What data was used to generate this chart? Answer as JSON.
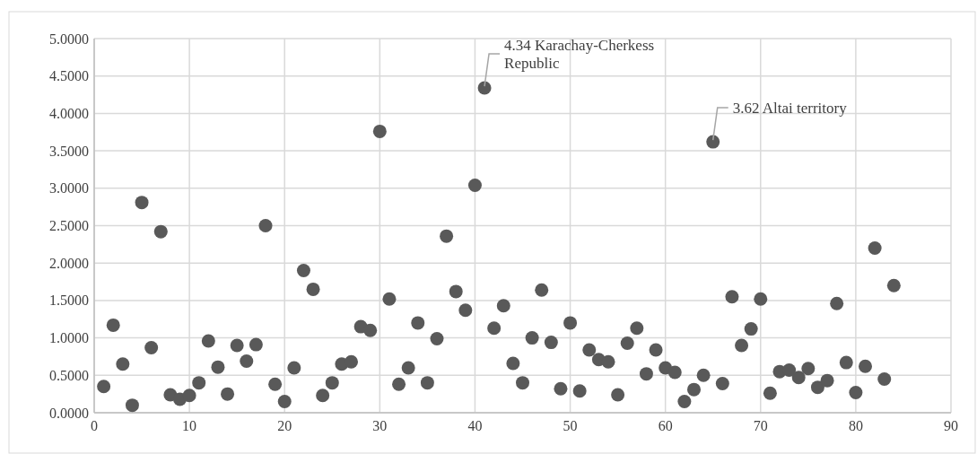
{
  "chart_data": {
    "type": "scatter",
    "x": [
      1,
      2,
      3,
      4,
      5,
      6,
      7,
      8,
      9,
      10,
      11,
      12,
      13,
      14,
      15,
      16,
      17,
      18,
      19,
      20,
      21,
      22,
      23,
      24,
      25,
      26,
      27,
      28,
      29,
      30,
      31,
      32,
      33,
      34,
      35,
      36,
      37,
      38,
      39,
      40,
      41,
      42,
      43,
      44,
      45,
      46,
      47,
      48,
      49,
      50,
      51,
      52,
      53,
      54,
      55,
      56,
      57,
      58,
      59,
      60,
      61,
      62,
      63,
      64,
      65,
      66,
      67,
      68,
      69,
      70,
      71,
      72,
      73,
      74,
      75,
      76,
      77,
      78,
      79,
      80,
      81,
      82,
      83,
      84
    ],
    "values": [
      0.35,
      1.17,
      0.65,
      0.1,
      2.81,
      0.87,
      2.42,
      0.24,
      0.18,
      0.23,
      0.4,
      0.96,
      0.61,
      0.25,
      0.9,
      0.69,
      0.91,
      2.5,
      0.38,
      0.15,
      0.6,
      1.9,
      1.65,
      0.23,
      0.4,
      0.65,
      0.68,
      1.15,
      1.1,
      3.76,
      1.52,
      0.38,
      0.6,
      1.2,
      0.4,
      0.99,
      2.36,
      1.62,
      1.37,
      3.04,
      4.34,
      1.13,
      1.43,
      0.66,
      0.4,
      1.0,
      1.64,
      0.94,
      0.32,
      1.2,
      0.29,
      0.84,
      0.71,
      0.68,
      0.24,
      0.93,
      1.13,
      0.52,
      0.84,
      0.6,
      0.54,
      0.15,
      0.31,
      0.5,
      3.62,
      0.39,
      1.55,
      0.9,
      1.12,
      1.52,
      0.26,
      0.55,
      0.57,
      0.47,
      0.59,
      0.34,
      0.43,
      1.46,
      0.67,
      0.27,
      0.62,
      2.2,
      0.45,
      1.7
    ],
    "color": "#595959",
    "marker": "circle",
    "grid": true,
    "xlim": [
      0,
      90
    ],
    "xticks": [
      0,
      10,
      20,
      30,
      40,
      50,
      60,
      70,
      80,
      90
    ],
    "ylim": [
      0,
      5
    ],
    "yticks": [
      {
        "value": 0,
        "label": "0.0000"
      },
      {
        "value": 0.5,
        "label": "0.5000"
      },
      {
        "value": 1,
        "label": "1.0000"
      },
      {
        "value": 1.5,
        "label": "1.5000"
      },
      {
        "value": 2,
        "label": "2.0000"
      },
      {
        "value": 2.5,
        "label": "2.5000"
      },
      {
        "value": 3,
        "label": "3.0000"
      },
      {
        "value": 3.5,
        "label": "3.5000"
      },
      {
        "value": 4,
        "label": "4.0000"
      },
      {
        "value": 4.5,
        "label": "4.5000"
      },
      {
        "value": 5,
        "label": "5.0000"
      }
    ],
    "annotations": [
      {
        "text": "4.34 Karachay-Cherkess Republic",
        "x": 41,
        "y": 4.34
      },
      {
        "text": "3.62 Altai territory",
        "x": 65,
        "y": 3.62
      }
    ]
  }
}
